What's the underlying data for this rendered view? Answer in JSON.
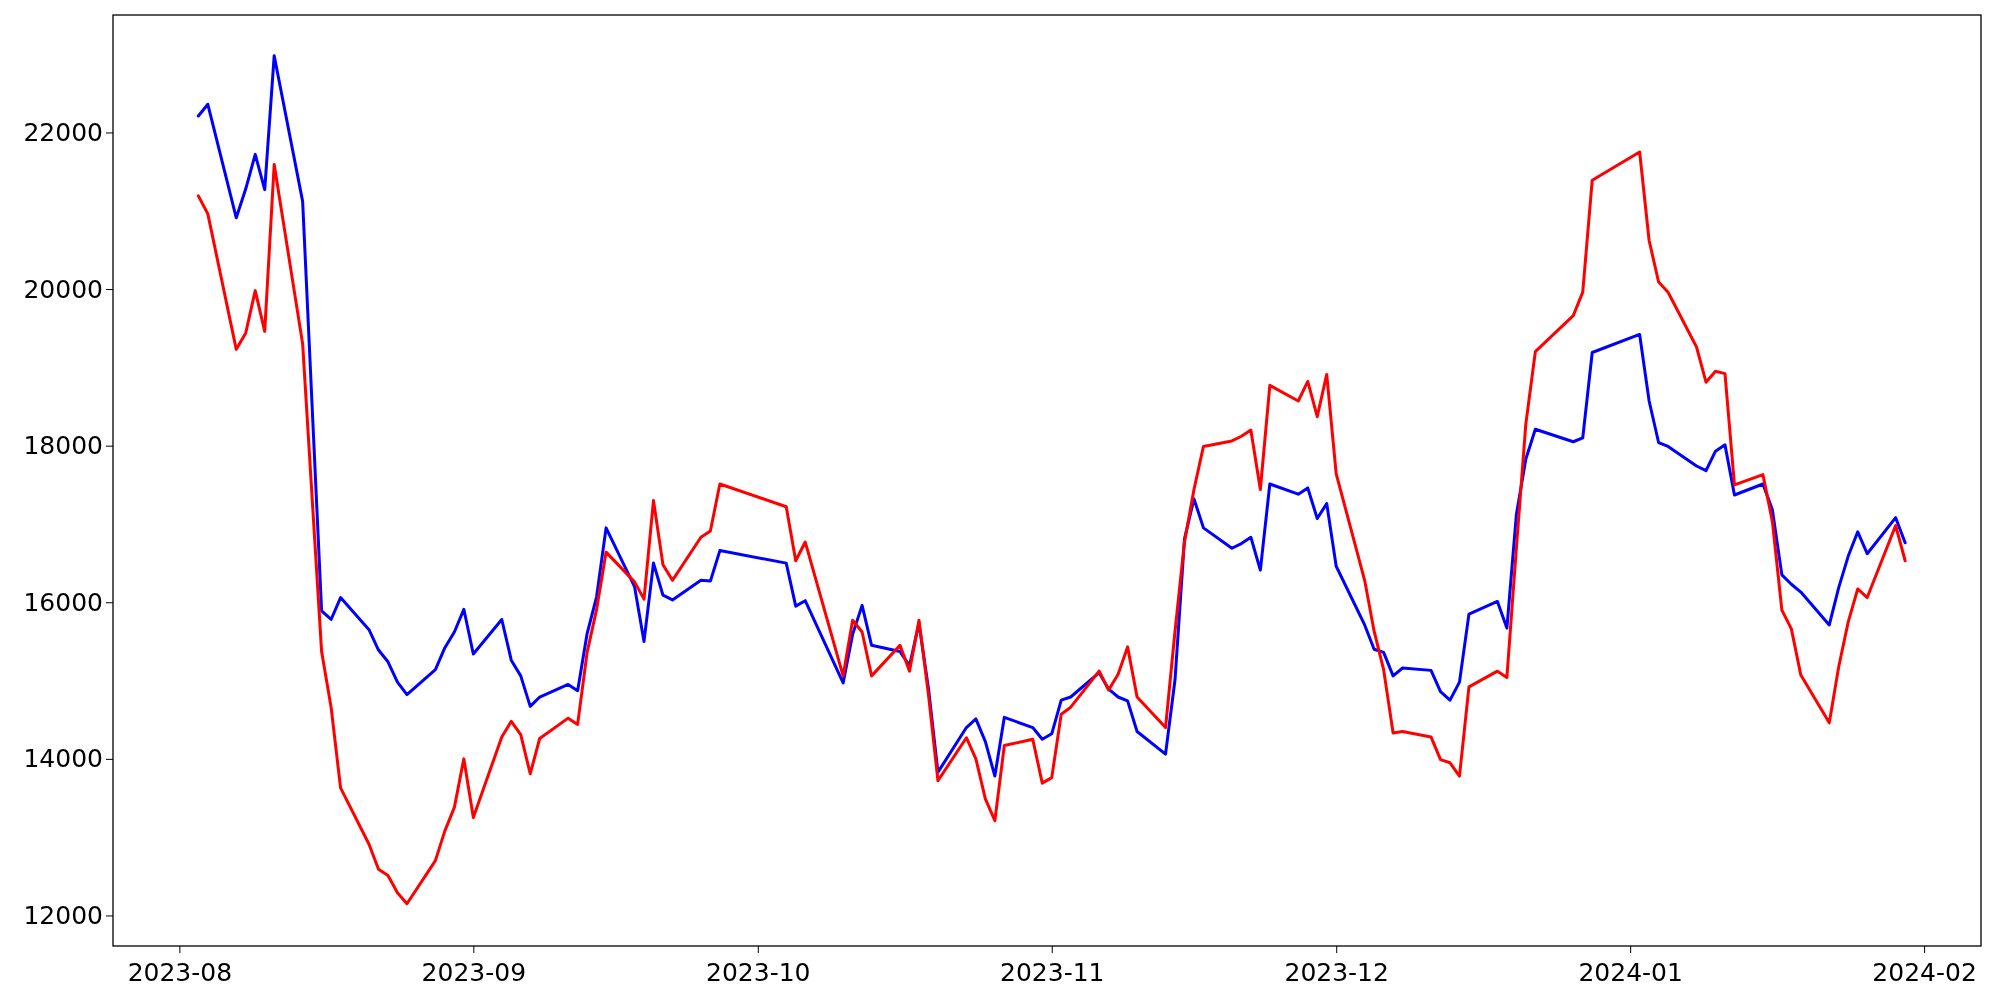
{
  "chart_data": {
    "type": "line",
    "x": [
      "2023-08-03",
      "2023-08-04",
      "2023-08-07",
      "2023-08-08",
      "2023-08-09",
      "2023-08-10",
      "2023-08-11",
      "2023-08-14",
      "2023-08-16",
      "2023-08-17",
      "2023-08-18",
      "2023-08-21",
      "2023-08-22",
      "2023-08-23",
      "2023-08-24",
      "2023-08-25",
      "2023-08-28",
      "2023-08-29",
      "2023-08-30",
      "2023-08-31",
      "2023-09-01",
      "2023-09-04",
      "2023-09-05",
      "2023-09-06",
      "2023-09-07",
      "2023-09-08",
      "2023-09-11",
      "2023-09-12",
      "2023-09-13",
      "2023-09-14",
      "2023-09-15",
      "2023-09-18",
      "2023-09-19",
      "2023-09-20",
      "2023-09-21",
      "2023-09-22",
      "2023-09-25",
      "2023-09-26",
      "2023-09-27",
      "2023-10-04",
      "2023-10-05",
      "2023-10-06",
      "2023-10-10",
      "2023-10-11",
      "2023-10-12",
      "2023-10-13",
      "2023-10-16",
      "2023-10-17",
      "2023-10-18",
      "2023-10-19",
      "2023-10-20",
      "2023-10-23",
      "2023-10-24",
      "2023-10-25",
      "2023-10-26",
      "2023-10-27",
      "2023-10-30",
      "2023-10-31",
      "2023-11-01",
      "2023-11-02",
      "2023-11-03",
      "2023-11-06",
      "2023-11-07",
      "2023-11-08",
      "2023-11-09",
      "2023-11-10",
      "2023-11-13",
      "2023-11-14",
      "2023-11-15",
      "2023-11-16",
      "2023-11-17",
      "2023-11-20",
      "2023-11-21",
      "2023-11-22",
      "2023-11-23",
      "2023-11-24",
      "2023-11-27",
      "2023-11-28",
      "2023-11-29",
      "2023-11-30",
      "2023-12-01",
      "2023-12-04",
      "2023-12-05",
      "2023-12-06",
      "2023-12-07",
      "2023-12-08",
      "2023-12-11",
      "2023-12-12",
      "2023-12-13",
      "2023-12-14",
      "2023-12-15",
      "2023-12-18",
      "2023-12-19",
      "2023-12-20",
      "2023-12-21",
      "2023-12-22",
      "2023-12-26",
      "2023-12-27",
      "2023-12-28",
      "2024-01-02",
      "2024-01-03",
      "2024-01-04",
      "2024-01-05",
      "2024-01-08",
      "2024-01-09",
      "2024-01-10",
      "2024-01-11",
      "2024-01-12",
      "2024-01-15",
      "2024-01-16",
      "2024-01-17",
      "2024-01-18",
      "2024-01-19",
      "2024-01-22",
      "2024-01-23",
      "2024-01-24",
      "2024-01-25",
      "2024-01-26",
      "2024-01-29",
      "2024-01-30"
    ],
    "series": [
      {
        "color": "#0000ff",
        "values": [
          22210,
          22360,
          20910,
          21280,
          21720,
          21270,
          22980,
          21120,
          15890,
          15780,
          16060,
          15650,
          15390,
          15240,
          14980,
          14820,
          15140,
          15420,
          15620,
          15910,
          15340,
          15780,
          15260,
          15060,
          14670,
          14790,
          14950,
          14870,
          15600,
          16070,
          16950,
          16200,
          15500,
          16500,
          16090,
          16030,
          16280,
          16270,
          16660,
          16500,
          15950,
          16020,
          14970,
          15590,
          15960,
          15450,
          15370,
          15190,
          15730,
          14900,
          13830,
          14400,
          14510,
          14220,
          13780,
          14530,
          14400,
          14250,
          14320,
          14750,
          14790,
          15100,
          14890,
          14790,
          14740,
          14350,
          14060,
          15010,
          16810,
          17320,
          16950,
          16690,
          16750,
          16830,
          16410,
          17510,
          17380,
          17460,
          17070,
          17260,
          16460,
          15710,
          15400,
          15360,
          15060,
          15160,
          15130,
          14860,
          14750,
          14980,
          15850,
          16010,
          15670,
          17120,
          17830,
          18210,
          18050,
          18100,
          19190,
          19420,
          18570,
          18040,
          17990,
          17740,
          17680,
          17930,
          18010,
          17370,
          17510,
          17180,
          16350,
          16230,
          16130,
          15710,
          16190,
          16590,
          16900,
          16620,
          17080,
          16760
        ]
      },
      {
        "color": "#ff0000",
        "values": [
          21190,
          20960,
          19230,
          19440,
          19980,
          19460,
          21590,
          19300,
          15370,
          14660,
          13630,
          12910,
          12590,
          12510,
          12290,
          12150,
          12700,
          13080,
          13380,
          14000,
          13250,
          14280,
          14480,
          14310,
          13810,
          14260,
          14520,
          14440,
          15360,
          15910,
          16640,
          16260,
          16040,
          17300,
          16480,
          16280,
          16830,
          16910,
          17510,
          17220,
          16530,
          16770,
          15060,
          15770,
          15620,
          15060,
          15450,
          15120,
          15770,
          14820,
          13720,
          14270,
          14000,
          13490,
          13210,
          14170,
          14250,
          13690,
          13760,
          14570,
          14660,
          15120,
          14880,
          15080,
          15430,
          14790,
          14400,
          15630,
          16770,
          17440,
          17990,
          18060,
          18120,
          18200,
          17440,
          18770,
          18570,
          18820,
          18370,
          18910,
          17640,
          16280,
          15630,
          15140,
          14330,
          14350,
          14280,
          13990,
          13950,
          13780,
          14920,
          15120,
          15040,
          16690,
          18280,
          19200,
          19660,
          19960,
          21390,
          21750,
          20620,
          20090,
          19960,
          19260,
          18810,
          18950,
          18920,
          17500,
          17630,
          17030,
          15900,
          15660,
          15070,
          14460,
          15180,
          15750,
          16170,
          16060,
          16980,
          16530
        ]
      }
    ],
    "xlim": [
      "2023-07-25",
      "2024-02-07"
    ],
    "xticks": [
      {
        "value": "2023-08-01",
        "label": "2023-08"
      },
      {
        "value": "2023-09-01",
        "label": "2023-09"
      },
      {
        "value": "2023-10-01",
        "label": "2023-10"
      },
      {
        "value": "2023-11-01",
        "label": "2023-11"
      },
      {
        "value": "2023-12-01",
        "label": "2023-12"
      },
      {
        "value": "2024-01-01",
        "label": "2024-01"
      },
      {
        "value": "2024-02-01",
        "label": "2024-02"
      }
    ],
    "ylim": [
      11610,
      23500
    ],
    "yticks": [
      12000,
      14000,
      16000,
      18000,
      20000,
      22000
    ],
    "grid": false,
    "marker": "none",
    "line_style": "solid"
  }
}
